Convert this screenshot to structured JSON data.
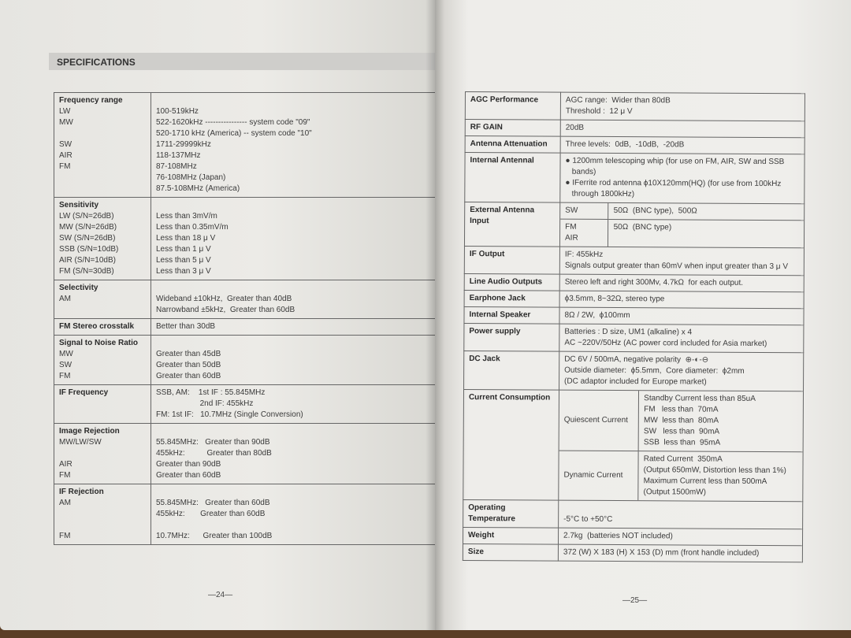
{
  "left_page": {
    "header": "SPECIFICATIONS",
    "page_number": "—24—",
    "rows": [
      {
        "title": "Frequency range",
        "lines": [
          [
            "LW",
            "100-519kHz"
          ],
          [
            "MW",
            "522-1620kHz ---------------- system code \"09\""
          ],
          [
            "",
            "520-1710 kHz (America) -- system code \"10\""
          ],
          [
            "SW",
            "1711-29999kHz"
          ],
          [
            "AIR",
            "118-137MHz"
          ],
          [
            "FM",
            "87-108MHz"
          ],
          [
            "",
            "76-108MHz (Japan)"
          ],
          [
            "",
            "87.5-108MHz (America)"
          ]
        ]
      },
      {
        "title": "Sensitivity",
        "lines": [
          [
            "LW (S/N=26dB)",
            "Less than 3mV/m"
          ],
          [
            "MW (S/N=26dB)",
            "Less than 0.35mV/m"
          ],
          [
            "SW (S/N=26dB)",
            "Less than 18 μ V"
          ],
          [
            "SSB (S/N=10dB)",
            "Less than 1 μ V"
          ],
          [
            "AIR (S/N=10dB)",
            "Less than 5 μ V"
          ],
          [
            "FM (S/N=30dB)",
            "Less than 3 μ V"
          ]
        ]
      },
      {
        "title": "Selectivity",
        "lines": [
          [
            "AM",
            "Wideband ±10kHz,  Greater than 40dB"
          ],
          [
            "",
            "Narrowband ±5kHz,  Greater than 60dB"
          ]
        ]
      },
      {
        "title": "FM Stereo crosstalk",
        "inline": "Better than 30dB",
        "lines": []
      },
      {
        "title": "Signal to Noise Ratio",
        "lines": [
          [
            "MW",
            "Greater than 45dB"
          ],
          [
            "SW",
            "Greater than 50dB"
          ],
          [
            "FM",
            "Greater than 60dB"
          ]
        ]
      },
      {
        "title": "IF Frequency",
        "inline": "SSB, AM:    1st IF : 55.845MHz",
        "lines": [
          [
            "",
            "                    2nd IF: 455kHz"
          ],
          [
            "",
            "FM: 1st IF:   10.7MHz (Single Conversion)"
          ]
        ]
      },
      {
        "title": "Image Rejection",
        "lines": [
          [
            "MW/LW/SW",
            "55.845MHz:   Greater than 90dB"
          ],
          [
            "",
            "455kHz:          Greater than 80dB"
          ],
          [
            "AIR",
            "Greater than 90dB"
          ],
          [
            "FM",
            "Greater than 60dB"
          ]
        ]
      },
      {
        "title": "IF Rejection",
        "lines": [
          [
            "AM",
            "55.845MHz:   Greater than 60dB"
          ],
          [
            "",
            "455kHz:       Greater than 60dB"
          ],
          [
            "",
            ""
          ],
          [
            "FM",
            "10.7MHz:      Greater than 100dB"
          ]
        ]
      }
    ]
  },
  "right_page": {
    "page_number": "—25—",
    "rows": [
      {
        "title": "AGC Performance",
        "values": [
          "AGC range:  Wider than 80dB",
          "Threshold :  12 μ V"
        ]
      },
      {
        "title": "RF GAIN",
        "values": [
          "20dB"
        ]
      },
      {
        "title": "Antenna Attenuation",
        "values": [
          "Three levels:  0dB,  -10dB,  -20dB"
        ]
      },
      {
        "title": "Internal Antennal",
        "values": [
          "● 1200mm telescoping whip (for use on FM, AIR, SW and SSB",
          "   bands)",
          "● IFerrite rod antenna ϕ10X120mm(HQ) (for use from 100kHz",
          "   through 1800kHz)"
        ]
      },
      {
        "title": "External Antenna Input",
        "sub": [
          {
            "k": "SW",
            "v": [
              "50Ω  (BNC type),  500Ω"
            ]
          },
          {
            "k": "FM\nAIR",
            "v": [
              "50Ω  (BNC type)"
            ]
          }
        ]
      },
      {
        "title": "IF Output",
        "values": [
          "IF: 455kHz",
          "Signals output greater than 60mV when input greater than 3 μ V"
        ]
      },
      {
        "title": "Line Audio Outputs",
        "values": [
          "Stereo left and right 300Mv, 4.7kΩ  for each output."
        ]
      },
      {
        "title": "Earphone Jack",
        "values": [
          "ϕ3.5mm, 8~32Ω, stereo type"
        ]
      },
      {
        "title": "Internal Speaker",
        "values": [
          "8Ω / 2W,  ϕ100mm"
        ]
      },
      {
        "title": "Power supply",
        "values": [
          "Batteries : D size, UM1 (alkaline) x 4",
          "AC ~220V/50Hz (AC power cord included for Asia market)"
        ]
      },
      {
        "title": "DC Jack",
        "values": [
          "DC 6V / 500mA, negative polarity  ⊕-◐-⊖",
          "Outside diameter:  ϕ5.5mm,  Core diameter:  ϕ2mm",
          "(DC adaptor included for Europe market)"
        ]
      },
      {
        "title": "Current Consumption",
        "sub": [
          {
            "k": "Quiescent Current",
            "v": [
              "Standby Current less than 85uA",
              "FM   less than  70mA",
              "MW  less than  80mA",
              "SW   less than  90mA",
              "SSB  less than  95mA"
            ]
          },
          {
            "k": "Dynamic Current",
            "v": [
              "Rated Current  350mA",
              "(Output 650mW, Distortion less than 1%)",
              "Maximum Current less than 500mA",
              "(Output 1500mW)"
            ]
          }
        ]
      },
      {
        "title": "Operating Temperature",
        "values": [
          "",
          "-5°C to +50°C"
        ]
      },
      {
        "title": "Weight",
        "values": [
          "2.7kg  (batteries NOT included)"
        ]
      },
      {
        "title": "Size",
        "values": [
          "372 (W) X 183 (H) X 153 (D) mm (front handle included)"
        ]
      }
    ]
  }
}
